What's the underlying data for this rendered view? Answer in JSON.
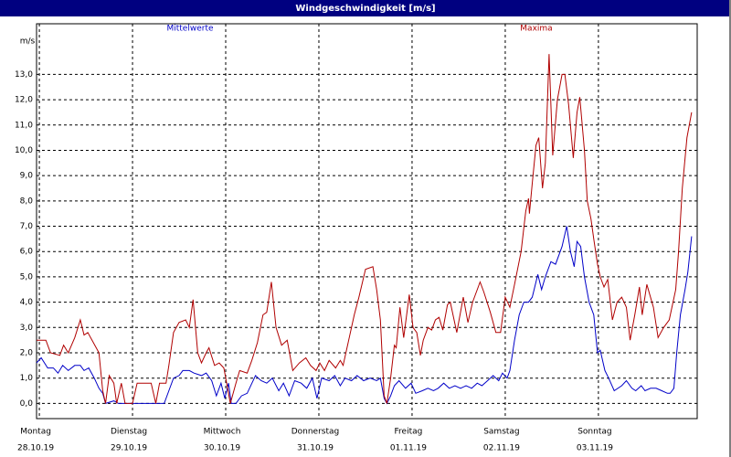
{
  "chart_data": {
    "type": "line",
    "title": "Windgeschwindigkeit [m/s]",
    "y_unit": "m/s",
    "xlim": [
      -0.03,
      7.06
    ],
    "ylim": [
      -0.6,
      15
    ],
    "grid": true,
    "xticks": [
      {
        "value": 0,
        "label": "Montag"
      },
      {
        "value": 1,
        "label": "Dienstag"
      },
      {
        "value": 2,
        "label": "Mittwoch"
      },
      {
        "value": 3,
        "label": "Donnerstag"
      },
      {
        "value": 4,
        "label": "Freitag"
      },
      {
        "value": 5,
        "label": "Samstag"
      },
      {
        "value": 6,
        "label": "Sonntag"
      }
    ],
    "xtick_dates": [
      "28.10.19",
      "29.10.19",
      "30.10.19",
      "31.10.19",
      "01.11.19",
      "02.11.19",
      "03.11.19"
    ],
    "yticks": [
      {
        "value": 0,
        "label": "0,0"
      },
      {
        "value": 1,
        "label": "1,0"
      },
      {
        "value": 2,
        "label": "2,0"
      },
      {
        "value": 3,
        "label": "3,0"
      },
      {
        "value": 4,
        "label": "4,0"
      },
      {
        "value": 5,
        "label": "5,0"
      },
      {
        "value": 6,
        "label": "6,0"
      },
      {
        "value": 7,
        "label": "7,0"
      },
      {
        "value": 8,
        "label": "8,0"
      },
      {
        "value": 9,
        "label": "9,0"
      },
      {
        "value": 10,
        "label": "10,0"
      },
      {
        "value": 11,
        "label": "11,0"
      },
      {
        "value": 12,
        "label": "12,0"
      },
      {
        "value": 13,
        "label": "13,0"
      }
    ],
    "series": [
      {
        "name": "Mittelwerte",
        "color": "#0000c8",
        "x": [
          -0.03,
          0.02,
          0.09,
          0.15,
          0.2,
          0.25,
          0.31,
          0.38,
          0.44,
          0.48,
          0.53,
          0.59,
          0.64,
          0.68,
          0.71,
          0.8,
          0.85,
          1.34,
          1.39,
          1.44,
          1.5,
          1.54,
          1.61,
          1.66,
          1.74,
          1.79,
          1.85,
          1.9,
          1.95,
          1.99,
          2.03,
          2.06,
          2.11,
          2.17,
          2.23,
          2.32,
          2.38,
          2.44,
          2.5,
          2.57,
          2.62,
          2.68,
          2.74,
          2.81,
          2.87,
          2.93,
          2.98,
          3.03,
          3.11,
          3.17,
          3.23,
          3.28,
          3.35,
          3.41,
          3.48,
          3.55,
          3.62,
          3.66,
          3.7,
          3.73,
          3.77,
          3.81,
          3.86,
          3.93,
          3.99,
          4.04,
          4.11,
          4.17,
          4.23,
          4.28,
          4.34,
          4.4,
          4.46,
          4.52,
          4.58,
          4.64,
          4.7,
          4.75,
          4.81,
          4.87,
          4.93,
          4.97,
          5.02,
          5.05,
          5.1,
          5.15,
          5.2,
          5.25,
          5.29,
          5.35,
          5.39,
          5.43,
          5.49,
          5.54,
          5.61,
          5.66,
          5.7,
          5.74,
          5.77,
          5.81,
          5.85,
          5.9,
          5.95,
          5.99,
          6.02,
          6.07,
          6.11,
          6.17,
          6.25,
          6.3,
          6.36,
          6.4,
          6.46,
          6.5,
          6.56,
          6.62,
          6.68,
          6.74,
          6.77,
          6.81,
          6.84,
          6.88,
          6.93,
          6.96,
          7.0
        ],
        "values": [
          1.6,
          1.8,
          1.4,
          1.4,
          1.2,
          1.5,
          1.3,
          1.5,
          1.5,
          1.3,
          1.4,
          1.0,
          0.6,
          0.4,
          0,
          0.1,
          0,
          0,
          0.5,
          1.0,
          1.1,
          1.3,
          1.3,
          1.2,
          1.1,
          1.2,
          0.9,
          0.3,
          0.8,
          0.2,
          0.8,
          0,
          0,
          0.3,
          0.4,
          1.1,
          0.9,
          0.8,
          1.0,
          0.5,
          0.8,
          0.3,
          0.9,
          0.8,
          0.6,
          1.0,
          0.2,
          1.0,
          0.9,
          1.1,
          0.7,
          1.0,
          0.9,
          1.1,
          0.9,
          1.0,
          0.9,
          1.0,
          0.2,
          0,
          0.3,
          0.7,
          0.9,
          0.6,
          0.8,
          0.4,
          0.5,
          0.6,
          0.5,
          0.6,
          0.8,
          0.6,
          0.7,
          0.6,
          0.7,
          0.6,
          0.8,
          0.7,
          0.9,
          1.1,
          0.9,
          1.2,
          1.0,
          1.3,
          2.5,
          3.5,
          4.0,
          4.0,
          4.2,
          5.1,
          4.5,
          5.0,
          5.6,
          5.5,
          6.2,
          7.0,
          6.0,
          5.4,
          6.4,
          6.2,
          5.0,
          4.0,
          3.5,
          2.0,
          2.1,
          1.3,
          1.0,
          0.5,
          0.7,
          0.9,
          0.6,
          0.5,
          0.7,
          0.5,
          0.6,
          0.6,
          0.5,
          0.4,
          0.4,
          0.6,
          2.0,
          3.5,
          4.5,
          5.2,
          6.6
        ]
      },
      {
        "name": "Maxima",
        "color": "#b00000",
        "x": [
          -0.03,
          0.07,
          0.12,
          0.22,
          0.26,
          0.31,
          0.38,
          0.44,
          0.48,
          0.52,
          0.58,
          0.64,
          0.68,
          0.71,
          0.75,
          0.8,
          0.83,
          0.88,
          0.92,
          1.0,
          1.05,
          1.2,
          1.25,
          1.29,
          1.36,
          1.39,
          1.44,
          1.5,
          1.57,
          1.61,
          1.65,
          1.7,
          1.74,
          1.79,
          1.82,
          1.88,
          1.93,
          1.98,
          2.05,
          2.11,
          2.15,
          2.23,
          2.28,
          2.34,
          2.4,
          2.44,
          2.49,
          2.54,
          2.6,
          2.66,
          2.72,
          2.79,
          2.86,
          2.91,
          2.97,
          3.01,
          3.06,
          3.11,
          3.18,
          3.23,
          3.26,
          3.32,
          3.38,
          3.43,
          3.5,
          3.58,
          3.62,
          3.66,
          3.7,
          3.73,
          3.77,
          3.81,
          3.83,
          3.87,
          3.91,
          3.97,
          4.01,
          4.05,
          4.09,
          4.12,
          4.17,
          4.21,
          4.25,
          4.29,
          4.33,
          4.38,
          4.41,
          4.48,
          4.55,
          4.6,
          4.65,
          4.73,
          4.77,
          4.84,
          4.9,
          4.95,
          5.0,
          5.05,
          5.1,
          5.17,
          5.22,
          5.25,
          5.26,
          5.29,
          5.33,
          5.36,
          5.4,
          5.43,
          5.47,
          5.51,
          5.56,
          5.61,
          5.64,
          5.68,
          5.73,
          5.77,
          5.8,
          5.85,
          5.88,
          5.92,
          5.95,
          5.99,
          6.02,
          6.06,
          6.1,
          6.15,
          6.2,
          6.25,
          6.3,
          6.34,
          6.39,
          6.44,
          6.47,
          6.52,
          6.59,
          6.64,
          6.7,
          6.76,
          6.83,
          6.86,
          6.9,
          6.95,
          7.0
        ],
        "values": [
          2.5,
          2.5,
          2.0,
          1.9,
          2.3,
          2.0,
          2.6,
          3.3,
          2.7,
          2.8,
          2.4,
          2.0,
          0.5,
          0,
          1.1,
          0.8,
          0,
          0.8,
          0,
          0,
          0.8,
          0.8,
          0,
          0.8,
          0.8,
          1.5,
          2.8,
          3.2,
          3.3,
          3.0,
          4.1,
          2.0,
          1.6,
          2.0,
          2.2,
          1.5,
          1.6,
          1.4,
          0,
          0.8,
          1.3,
          1.2,
          1.7,
          2.4,
          3.5,
          3.6,
          4.8,
          3.0,
          2.3,
          2.5,
          1.3,
          1.6,
          1.8,
          1.5,
          1.3,
          1.6,
          1.3,
          1.7,
          1.4,
          1.7,
          1.5,
          2.5,
          3.5,
          4.2,
          5.3,
          5.4,
          4.5,
          3.3,
          0.3,
          0,
          1.0,
          2.3,
          2.2,
          3.8,
          2.6,
          4.3,
          3.0,
          2.8,
          1.9,
          2.5,
          3.0,
          2.9,
          3.3,
          3.4,
          2.9,
          3.9,
          4.0,
          2.8,
          4.2,
          3.2,
          4.0,
          4.8,
          4.4,
          3.6,
          2.8,
          2.8,
          4.2,
          3.8,
          4.7,
          6.0,
          7.6,
          8.1,
          7.5,
          8.7,
          10.2,
          10.5,
          8.5,
          9.5,
          13.8,
          9.8,
          12.0,
          13.0,
          13.0,
          11.8,
          9.7,
          11.5,
          12.1,
          10.0,
          8.0,
          7.3,
          6.5,
          5.5,
          5.0,
          4.6,
          4.9,
          3.3,
          4.0,
          4.2,
          3.8,
          2.5,
          3.5,
          4.6,
          3.5,
          4.7,
          3.8,
          2.6,
          3.0,
          3.3,
          4.5,
          6.0,
          8.5,
          10.5,
          11.5
        ]
      }
    ]
  }
}
